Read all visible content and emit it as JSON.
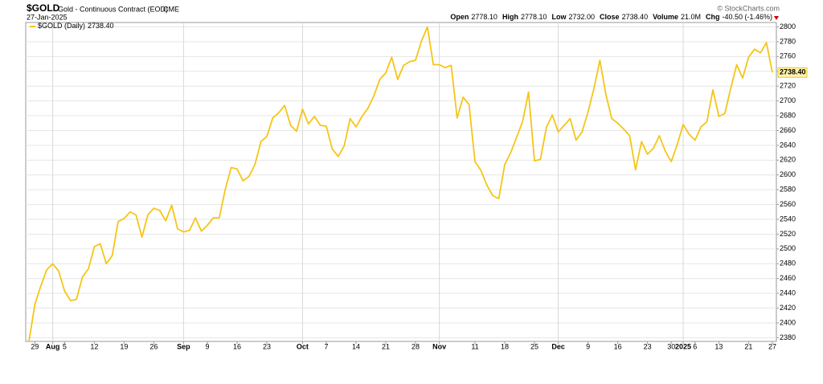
{
  "header": {
    "symbol": "$GOLD",
    "name": "Gold - Continuous Contract (EOD)",
    "exchange": "CME",
    "date": "27-Jan-2025",
    "copyright": "© StockCharts.com",
    "quote": [
      {
        "label": "Open",
        "value": "2778.10"
      },
      {
        "label": "High",
        "value": "2778.10"
      },
      {
        "label": "Low",
        "value": "2732.00"
      },
      {
        "label": "Close",
        "value": "2738.40"
      },
      {
        "label": "Volume",
        "value": "21.0M"
      },
      {
        "label": "Chg",
        "value": "-40.50 (-1.46%)"
      }
    ]
  },
  "chart_data": {
    "type": "line",
    "grid": true,
    "categories": [
      null,
      "29",
      null,
      null,
      "Aug",
      null,
      "5",
      null,
      null,
      null,
      null,
      "12",
      null,
      null,
      null,
      null,
      "19",
      null,
      null,
      null,
      null,
      "26",
      null,
      null,
      null,
      null,
      "Sep",
      null,
      null,
      null,
      "9",
      null,
      null,
      null,
      null,
      "16",
      null,
      null,
      null,
      null,
      "23",
      null,
      null,
      null,
      null,
      null,
      "Oct",
      null,
      null,
      null,
      "7",
      null,
      null,
      null,
      null,
      "14",
      null,
      null,
      null,
      null,
      "21",
      null,
      null,
      null,
      null,
      "28",
      null,
      null,
      null,
      "Nov",
      null,
      null,
      null,
      null,
      null,
      "11",
      null,
      null,
      null,
      null,
      "18",
      null,
      null,
      null,
      null,
      "25",
      null,
      null,
      null,
      "Dec",
      null,
      null,
      null,
      null,
      "9",
      null,
      null,
      null,
      null,
      "16",
      null,
      null,
      null,
      null,
      "23",
      null,
      null,
      null,
      "30",
      null,
      "2025",
      null,
      "6",
      null,
      null,
      null,
      "13",
      null,
      null,
      null,
      null,
      "21",
      null,
      null,
      null,
      "27"
    ],
    "series": [
      {
        "name": "$GOLD (Daily)",
        "color": "#f5c518",
        "values": [
          2375,
          2425,
          2450,
          2472,
          2480,
          2470,
          2443,
          2430,
          2432,
          2462,
          2473,
          2503,
          2507,
          2480,
          2491,
          2537,
          2541,
          2550,
          2546,
          2516,
          2546,
          2555,
          2552,
          2538,
          2559,
          2527,
          2523,
          2525,
          2542,
          2524,
          2532,
          2542,
          2542,
          2580,
          2610,
          2608,
          2592,
          2598,
          2614,
          2645,
          2652,
          2677,
          2684,
          2694,
          2667,
          2659,
          2689,
          2669,
          2679,
          2667,
          2666,
          2635,
          2625,
          2639,
          2676,
          2665,
          2679,
          2690,
          2707,
          2729,
          2738,
          2759,
          2729,
          2748,
          2753,
          2755,
          2781,
          2800,
          2749,
          2749,
          2745,
          2748,
          2677,
          2705,
          2695,
          2618,
          2606,
          2586,
          2572,
          2568,
          2614,
          2630,
          2651,
          2672,
          2712,
          2619,
          2621,
          2664,
          2681,
          2658,
          2667,
          2676,
          2647,
          2658,
          2685,
          2717,
          2755,
          2709,
          2676,
          2670,
          2662,
          2653,
          2607,
          2645,
          2628,
          2636,
          2653,
          2632,
          2618,
          2641,
          2668,
          2655,
          2647,
          2665,
          2672,
          2715,
          2679,
          2683,
          2717,
          2749,
          2731,
          2759,
          2770,
          2765,
          2779,
          2738.4
        ],
        "last_label": "2738.40"
      }
    ],
    "ylim": [
      2375,
      2806
    ],
    "yticks": [
      2380,
      2400,
      2420,
      2440,
      2460,
      2480,
      2500,
      2520,
      2540,
      2560,
      2580,
      2600,
      2620,
      2640,
      2660,
      2680,
      2700,
      2720,
      2740,
      2760,
      2780,
      2800
    ]
  }
}
